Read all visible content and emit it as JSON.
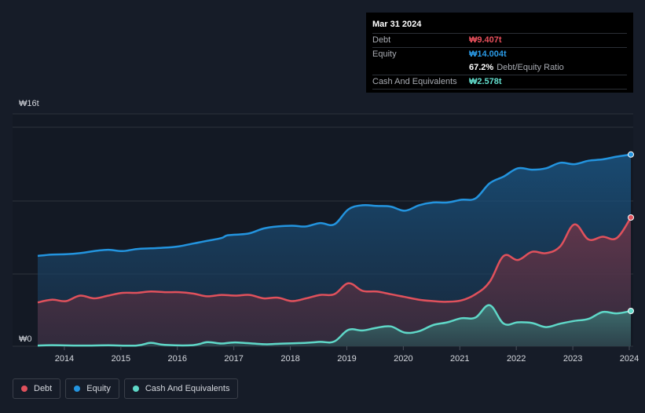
{
  "colors": {
    "debt": "#e0515c",
    "equity": "#2394df",
    "cash": "#5fd8c8",
    "debt_text": "#e9505c",
    "equity_text": "#2a9ae6",
    "cash_text": "#62ddcc"
  },
  "tooltip": {
    "date": "Mar 31 2024",
    "rows": [
      {
        "label": "Debt",
        "value": "₩9.407t"
      },
      {
        "label": "Equity",
        "value": "₩14.004t"
      },
      {
        "label": "",
        "value": "67.2%",
        "extra": "Debt/Equity Ratio"
      },
      {
        "label": "Cash And Equivalents",
        "value": "₩2.578t"
      }
    ]
  },
  "legend": [
    {
      "label": "Debt"
    },
    {
      "label": "Equity"
    },
    {
      "label": "Cash And Equivalents"
    }
  ],
  "chart_data": {
    "type": "area",
    "title": "",
    "xlabel": "",
    "ylabel": "",
    "y_top_label": "₩16t",
    "y_bottom_label": "₩0",
    "ylim": [
      0,
      16
    ],
    "xlim": [
      2013.75,
      2024.25
    ],
    "x_ticks": [
      "2014",
      "2015",
      "2016",
      "2017",
      "2018",
      "2019",
      "2020",
      "2021",
      "2022",
      "2023",
      "2024"
    ],
    "series": [
      {
        "name": "Equity",
        "key": "equity",
        "points": [
          [
            2013.75,
            6.6
          ],
          [
            2014.0,
            6.7
          ],
          [
            2014.25,
            6.72
          ],
          [
            2014.5,
            6.8
          ],
          [
            2014.75,
            6.95
          ],
          [
            2015.0,
            7.05
          ],
          [
            2015.25,
            6.95
          ],
          [
            2015.5,
            7.1
          ],
          [
            2015.75,
            7.15
          ],
          [
            2016.0,
            7.2
          ],
          [
            2016.25,
            7.3
          ],
          [
            2016.5,
            7.5
          ],
          [
            2016.75,
            7.7
          ],
          [
            2017.0,
            7.9
          ],
          [
            2017.1,
            8.1
          ],
          [
            2017.25,
            8.15
          ],
          [
            2017.5,
            8.25
          ],
          [
            2017.75,
            8.6
          ],
          [
            2018.0,
            8.75
          ],
          [
            2018.25,
            8.8
          ],
          [
            2018.5,
            8.75
          ],
          [
            2018.75,
            9.0
          ],
          [
            2019.0,
            8.9
          ],
          [
            2019.25,
            10.0
          ],
          [
            2019.5,
            10.3
          ],
          [
            2019.75,
            10.25
          ],
          [
            2020.0,
            10.2
          ],
          [
            2020.25,
            9.9
          ],
          [
            2020.5,
            10.3
          ],
          [
            2020.75,
            10.5
          ],
          [
            2021.0,
            10.5
          ],
          [
            2021.25,
            10.7
          ],
          [
            2021.5,
            10.8
          ],
          [
            2021.75,
            11.9
          ],
          [
            2022.0,
            12.4
          ],
          [
            2022.25,
            13.0
          ],
          [
            2022.5,
            12.9
          ],
          [
            2022.75,
            13.0
          ],
          [
            2023.0,
            13.4
          ],
          [
            2023.25,
            13.3
          ],
          [
            2023.5,
            13.55
          ],
          [
            2023.75,
            13.65
          ],
          [
            2024.0,
            13.85
          ],
          [
            2024.25,
            14.004
          ]
        ]
      },
      {
        "name": "Debt",
        "key": "debt",
        "points": [
          [
            2013.75,
            3.2
          ],
          [
            2014.0,
            3.4
          ],
          [
            2014.25,
            3.3
          ],
          [
            2014.5,
            3.7
          ],
          [
            2014.75,
            3.5
          ],
          [
            2015.0,
            3.7
          ],
          [
            2015.25,
            3.9
          ],
          [
            2015.5,
            3.9
          ],
          [
            2015.75,
            4.0
          ],
          [
            2016.0,
            3.95
          ],
          [
            2016.25,
            3.95
          ],
          [
            2016.5,
            3.85
          ],
          [
            2016.75,
            3.65
          ],
          [
            2017.0,
            3.75
          ],
          [
            2017.25,
            3.7
          ],
          [
            2017.5,
            3.75
          ],
          [
            2017.75,
            3.5
          ],
          [
            2018.0,
            3.55
          ],
          [
            2018.25,
            3.3
          ],
          [
            2018.5,
            3.5
          ],
          [
            2018.75,
            3.75
          ],
          [
            2019.0,
            3.8
          ],
          [
            2019.25,
            4.6
          ],
          [
            2019.5,
            4.05
          ],
          [
            2019.75,
            4.0
          ],
          [
            2020.0,
            3.8
          ],
          [
            2020.25,
            3.6
          ],
          [
            2020.5,
            3.4
          ],
          [
            2020.75,
            3.3
          ],
          [
            2021.0,
            3.25
          ],
          [
            2021.25,
            3.35
          ],
          [
            2021.5,
            3.8
          ],
          [
            2021.75,
            4.7
          ],
          [
            2022.0,
            6.6
          ],
          [
            2022.25,
            6.3
          ],
          [
            2022.5,
            6.9
          ],
          [
            2022.75,
            6.8
          ],
          [
            2023.0,
            7.3
          ],
          [
            2023.25,
            8.9
          ],
          [
            2023.5,
            7.8
          ],
          [
            2023.75,
            8.0
          ],
          [
            2024.0,
            7.9
          ],
          [
            2024.25,
            9.407
          ]
        ]
      },
      {
        "name": "Cash And Equivalents",
        "key": "cash",
        "points": [
          [
            2013.75,
            0.05
          ],
          [
            2014.0,
            0.08
          ],
          [
            2014.5,
            0.05
          ],
          [
            2015.0,
            0.07
          ],
          [
            2015.5,
            0.05
          ],
          [
            2015.75,
            0.25
          ],
          [
            2016.0,
            0.1
          ],
          [
            2016.5,
            0.08
          ],
          [
            2016.75,
            0.3
          ],
          [
            2017.0,
            0.2
          ],
          [
            2017.25,
            0.28
          ],
          [
            2017.75,
            0.15
          ],
          [
            2018.0,
            0.18
          ],
          [
            2018.5,
            0.25
          ],
          [
            2018.75,
            0.32
          ],
          [
            2019.0,
            0.35
          ],
          [
            2019.25,
            1.2
          ],
          [
            2019.5,
            1.15
          ],
          [
            2019.75,
            1.35
          ],
          [
            2020.0,
            1.45
          ],
          [
            2020.25,
            1.0
          ],
          [
            2020.5,
            1.1
          ],
          [
            2020.75,
            1.55
          ],
          [
            2021.0,
            1.75
          ],
          [
            2021.25,
            2.05
          ],
          [
            2021.5,
            2.1
          ],
          [
            2021.75,
            3.0
          ],
          [
            2022.0,
            1.65
          ],
          [
            2022.25,
            1.75
          ],
          [
            2022.5,
            1.7
          ],
          [
            2022.75,
            1.4
          ],
          [
            2023.0,
            1.65
          ],
          [
            2023.25,
            1.85
          ],
          [
            2023.5,
            2.0
          ],
          [
            2023.75,
            2.5
          ],
          [
            2024.0,
            2.4
          ],
          [
            2024.25,
            2.578
          ]
        ]
      }
    ]
  }
}
